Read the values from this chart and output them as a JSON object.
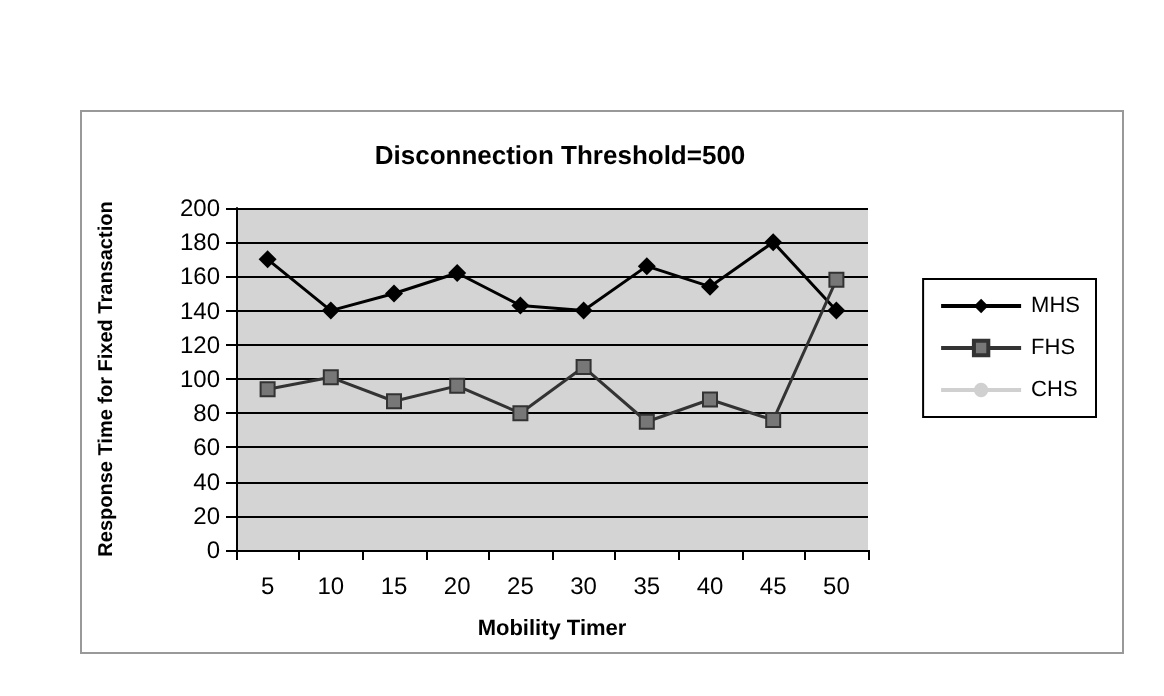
{
  "chart_data": {
    "type": "line",
    "title": "Disconnection Threshold=500",
    "xlabel": "Mobility Timer",
    "ylabel": "Response Time for Fixed Transaction",
    "categories": [
      "5",
      "10",
      "15",
      "20",
      "25",
      "30",
      "35",
      "40",
      "45",
      "50"
    ],
    "series": [
      {
        "name": "MHS",
        "color": "#000000",
        "marker": "diamond",
        "values": [
          170,
          140,
          150,
          162,
          143,
          140,
          166,
          154,
          180,
          140
        ]
      },
      {
        "name": "FHS",
        "color": "#333333",
        "marker": "square",
        "values": [
          94,
          101,
          87,
          96,
          80,
          107,
          75,
          88,
          76,
          158
        ]
      },
      {
        "name": "CHS",
        "color": "#d0d0d0",
        "marker": "none",
        "values": [
          null,
          null,
          null,
          null,
          null,
          null,
          null,
          null,
          null,
          null
        ]
      }
    ],
    "ylim": [
      0,
      200
    ],
    "yticks": [
      0,
      20,
      40,
      60,
      80,
      100,
      120,
      140,
      160,
      180,
      200
    ],
    "grid": "y",
    "legend": "right"
  }
}
